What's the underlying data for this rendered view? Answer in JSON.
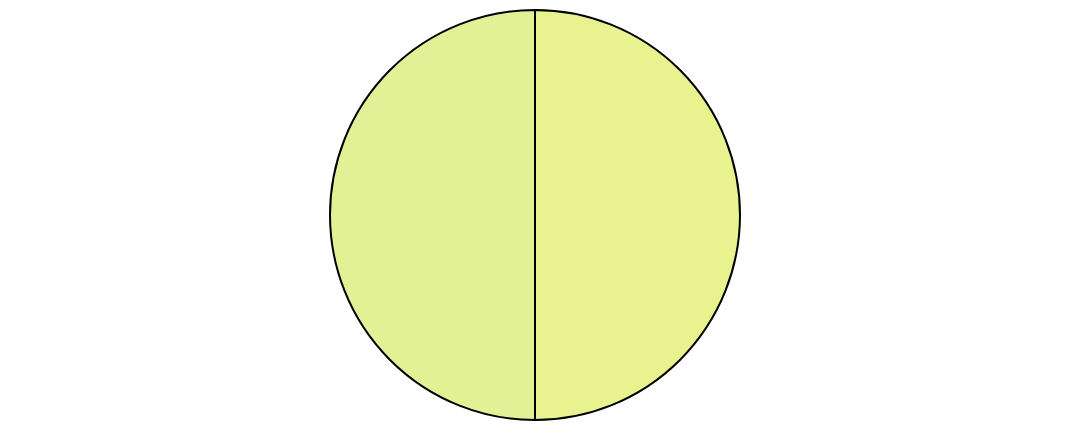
{
  "chart_data": {
    "type": "pie",
    "categories": [
      null,
      null
    ],
    "values": [
      50,
      50
    ],
    "colors": [
      "#e8f390",
      "#e3f196"
    ],
    "legend": false
  }
}
